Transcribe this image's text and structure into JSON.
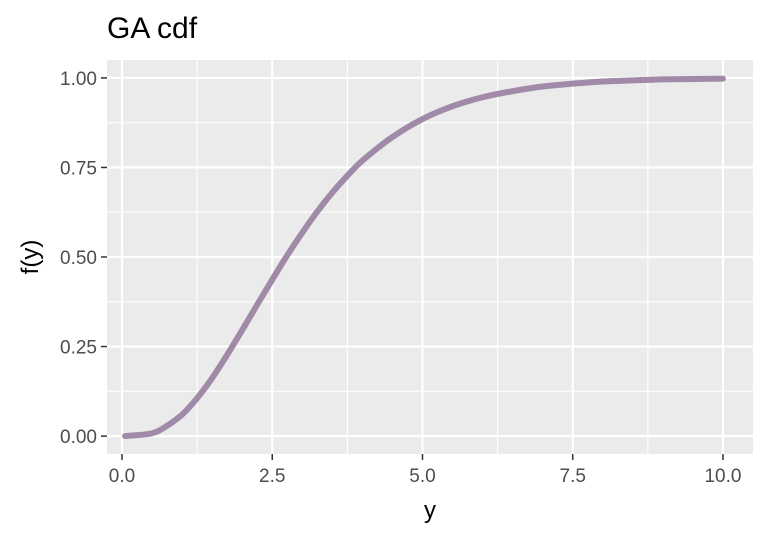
{
  "chart_data": {
    "type": "line",
    "title": "GA cdf",
    "xlabel": "y",
    "ylabel": "f(y)",
    "xlim": [
      -0.25,
      10.5
    ],
    "ylim": [
      -0.05,
      1.05
    ],
    "xticks": [
      0.0,
      2.5,
      5.0,
      7.5,
      10.0
    ],
    "xtick_labels": [
      "0.0",
      "2.5",
      "5.0",
      "7.5",
      "10.0"
    ],
    "yticks": [
      0.0,
      0.25,
      0.5,
      0.75,
      1.0
    ],
    "ytick_labels": [
      "0.00",
      "0.25",
      "0.50",
      "0.75",
      "1.00"
    ],
    "grid": true,
    "series": [
      {
        "color": "#a08aa8",
        "x": [
          0.05,
          0.5,
          0.75,
          1.0,
          1.25,
          1.5,
          1.75,
          2.0,
          2.25,
          2.5,
          2.75,
          3.0,
          3.25,
          3.5,
          3.75,
          4.0,
          4.5,
          5.0,
          5.5,
          6.0,
          6.5,
          7.0,
          7.5,
          8.0,
          8.5,
          9.0,
          9.5,
          10.0
        ],
        "y": [
          0.0,
          0.008,
          0.029,
          0.06,
          0.106,
          0.162,
          0.227,
          0.296,
          0.367,
          0.437,
          0.505,
          0.568,
          0.627,
          0.68,
          0.727,
          0.769,
          0.835,
          0.885,
          0.921,
          0.946,
          0.963,
          0.976,
          0.984,
          0.99,
          0.993,
          0.996,
          0.997,
          0.998
        ]
      }
    ]
  }
}
